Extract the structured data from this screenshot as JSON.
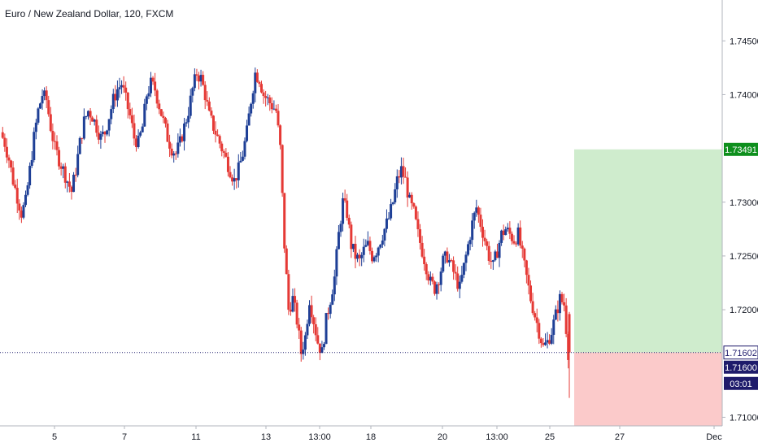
{
  "chart_title": "Euro / New Zealand Dollar, 120, FXCM",
  "colors": {
    "up": "#1e3f96",
    "down": "#e53935",
    "profit_zone": "#cfeccd",
    "loss_zone": "#fbcaca",
    "target_badge": "#0e8f1d",
    "price_badge": "#1e1b6b",
    "price_line": "#1e1b6b",
    "axis_text": "#131722"
  },
  "chart_data": {
    "type": "candlestick",
    "title": "Euro / New Zealand Dollar, 120, FXCM",
    "symbol": "EUR/NZD",
    "interval": "120",
    "source": "FXCM",
    "ylim": [
      1.7092,
      1.7488
    ],
    "y_ticks": [
      "1.74500",
      "1.74000",
      "1.73000",
      "1.72500",
      "1.72000",
      "1.71000"
    ],
    "x_ticks": [
      "5",
      "7",
      "11",
      "13",
      "13:00",
      "18",
      "20",
      "13:00",
      "25",
      "27",
      "Dec"
    ],
    "price_path": [
      1.7365,
      1.7355,
      1.734,
      1.732,
      1.7305,
      1.729,
      1.73,
      1.733,
      1.736,
      1.7385,
      1.74,
      1.7395,
      1.737,
      1.735,
      1.734,
      1.733,
      1.732,
      1.731,
      1.733,
      1.7355,
      1.7375,
      1.7385,
      1.738,
      1.737,
      1.736,
      1.7365,
      1.738,
      1.7395,
      1.7405,
      1.741,
      1.7395,
      1.738,
      1.736,
      1.7355,
      1.737,
      1.74,
      1.741,
      1.7405,
      1.739,
      1.7375,
      1.736,
      1.735,
      1.7345,
      1.7355,
      1.737,
      1.7385,
      1.7405,
      1.742,
      1.7415,
      1.74,
      1.738,
      1.737,
      1.736,
      1.735,
      1.734,
      1.733,
      1.732,
      1.733,
      1.7345,
      1.7365,
      1.7395,
      1.742,
      1.7415,
      1.74,
      1.7395,
      1.739,
      1.7385,
      1.735,
      1.726,
      1.72,
      1.721,
      1.719,
      1.716,
      1.7175,
      1.721,
      1.719,
      1.717,
      1.716,
      1.719,
      1.721,
      1.723,
      1.727,
      1.73,
      1.729,
      1.726,
      1.725,
      1.7245,
      1.7255,
      1.726,
      1.725,
      1.7255,
      1.7265,
      1.7275,
      1.7285,
      1.73,
      1.732,
      1.733,
      1.732,
      1.73,
      1.729,
      1.727,
      1.7255,
      1.724,
      1.7225,
      1.722,
      1.723,
      1.7245,
      1.725,
      1.724,
      1.723,
      1.722,
      1.724,
      1.726,
      1.728,
      1.7295,
      1.728,
      1.7265,
      1.725,
      1.724,
      1.7255,
      1.727,
      1.7275,
      1.727,
      1.7265,
      1.727,
      1.725,
      1.723,
      1.721,
      1.7195,
      1.718,
      1.7165,
      1.717,
      1.718,
      1.7195,
      1.721,
      1.7205,
      1.716
    ],
    "current_price": 1.71602,
    "price_label": "1.71602",
    "bid_label": "1.71600",
    "countdown": "03:01",
    "position": {
      "target_price": 1.73491,
      "target_label": "1.73491",
      "entry_price": 1.71602,
      "stop_price": 1.709
    },
    "low_wick": 1.7118
  }
}
